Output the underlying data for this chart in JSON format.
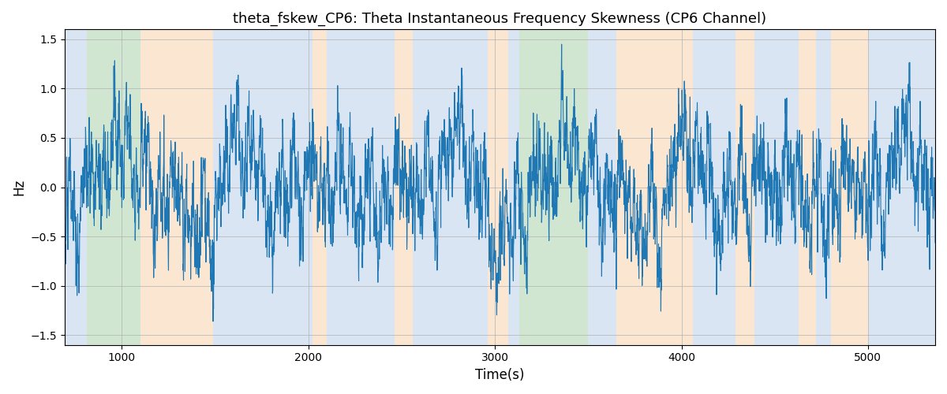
{
  "title": "theta_fskew_CP6: Theta Instantaneous Frequency Skewness (CP6 Channel)",
  "xlabel": "Time(s)",
  "ylabel": "Hz",
  "ylim": [
    -1.6,
    1.6
  ],
  "yticks": [
    -1.5,
    -1.0,
    -0.5,
    0.0,
    0.5,
    1.0,
    1.5
  ],
  "xlim": [
    693,
    5360
  ],
  "xticks": [
    1000,
    2000,
    3000,
    4000,
    5000
  ],
  "line_color": "#1f77b4",
  "line_width": 0.8,
  "bg_bands": [
    {
      "start": 693,
      "end": 810,
      "color": "#aec6e8",
      "alpha": 0.45
    },
    {
      "start": 810,
      "end": 1100,
      "color": "#98c99a",
      "alpha": 0.45
    },
    {
      "start": 1100,
      "end": 1490,
      "color": "#f5c89a",
      "alpha": 0.45
    },
    {
      "start": 1490,
      "end": 1560,
      "color": "#aec6e8",
      "alpha": 0.45
    },
    {
      "start": 1560,
      "end": 2020,
      "color": "#aec6e8",
      "alpha": 0.45
    },
    {
      "start": 2020,
      "end": 2100,
      "color": "#f5c89a",
      "alpha": 0.45
    },
    {
      "start": 2100,
      "end": 2460,
      "color": "#aec6e8",
      "alpha": 0.45
    },
    {
      "start": 2460,
      "end": 2560,
      "color": "#f5c89a",
      "alpha": 0.45
    },
    {
      "start": 2560,
      "end": 2960,
      "color": "#aec6e8",
      "alpha": 0.45
    },
    {
      "start": 2960,
      "end": 3070,
      "color": "#f5c89a",
      "alpha": 0.45
    },
    {
      "start": 3070,
      "end": 3130,
      "color": "#aec6e8",
      "alpha": 0.45
    },
    {
      "start": 3130,
      "end": 3500,
      "color": "#98c99a",
      "alpha": 0.45
    },
    {
      "start": 3500,
      "end": 3650,
      "color": "#aec6e8",
      "alpha": 0.45
    },
    {
      "start": 3650,
      "end": 4060,
      "color": "#f5c89a",
      "alpha": 0.45
    },
    {
      "start": 4060,
      "end": 4290,
      "color": "#aec6e8",
      "alpha": 0.45
    },
    {
      "start": 4290,
      "end": 4390,
      "color": "#f5c89a",
      "alpha": 0.45
    },
    {
      "start": 4390,
      "end": 4630,
      "color": "#aec6e8",
      "alpha": 0.45
    },
    {
      "start": 4630,
      "end": 4720,
      "color": "#f5c89a",
      "alpha": 0.45
    },
    {
      "start": 4720,
      "end": 4800,
      "color": "#aec6e8",
      "alpha": 0.45
    },
    {
      "start": 4800,
      "end": 5000,
      "color": "#f5c89a",
      "alpha": 0.45
    },
    {
      "start": 5000,
      "end": 5360,
      "color": "#aec6e8",
      "alpha": 0.45
    }
  ],
  "grid_color": "#b0b0b0",
  "grid_linewidth": 0.6,
  "seed": 42,
  "n_points": 4000
}
